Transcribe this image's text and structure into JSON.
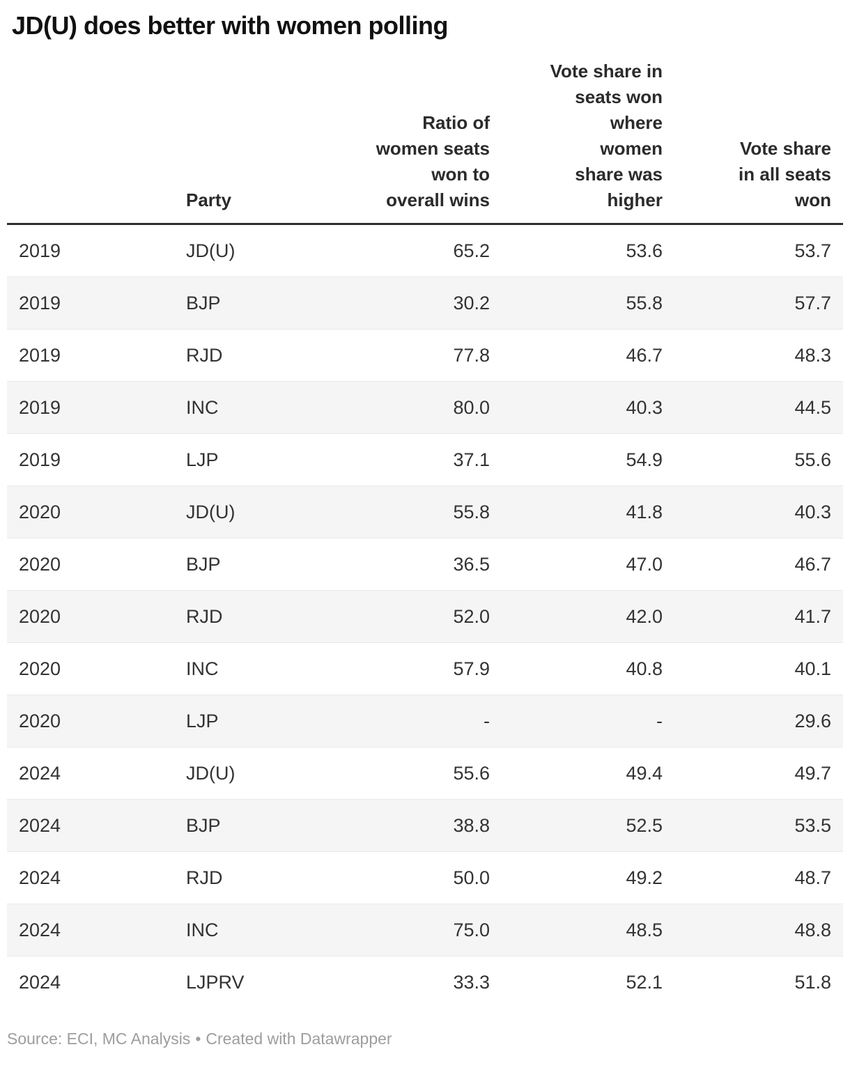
{
  "title": "JD(U) does better with women polling",
  "table": {
    "columns": [
      {
        "label": "",
        "align": "left"
      },
      {
        "label": "Party",
        "align": "left"
      },
      {
        "label": "Ratio of\nwomen seats\nwon to\noverall wins",
        "align": "right"
      },
      {
        "label": "Vote share in\nseats won\nwhere\nwomen\nshare was\nhigher",
        "align": "right"
      },
      {
        "label": "Vote share\nin all seats\nwon",
        "align": "right"
      }
    ],
    "rows": [
      [
        "2019",
        "JD(U)",
        "65.2",
        "53.6",
        "53.7"
      ],
      [
        "2019",
        "BJP",
        "30.2",
        "55.8",
        "57.7"
      ],
      [
        "2019",
        "RJD",
        "77.8",
        "46.7",
        "48.3"
      ],
      [
        "2019",
        "INC",
        "80.0",
        "40.3",
        "44.5"
      ],
      [
        "2019",
        "LJP",
        "37.1",
        "54.9",
        "55.6"
      ],
      [
        "2020",
        "JD(U)",
        "55.8",
        "41.8",
        "40.3"
      ],
      [
        "2020",
        "BJP",
        "36.5",
        "47.0",
        "46.7"
      ],
      [
        "2020",
        "RJD",
        "52.0",
        "42.0",
        "41.7"
      ],
      [
        "2020",
        "INC",
        "57.9",
        "40.8",
        "40.1"
      ],
      [
        "2020",
        "LJP",
        "-",
        "-",
        "29.6"
      ],
      [
        "2024",
        "JD(U)",
        "55.6",
        "49.4",
        "49.7"
      ],
      [
        "2024",
        "BJP",
        "38.8",
        "52.5",
        "53.5"
      ],
      [
        "2024",
        "RJD",
        "50.0",
        "49.2",
        "48.7"
      ],
      [
        "2024",
        "INC",
        "75.0",
        "48.5",
        "48.8"
      ],
      [
        "2024",
        "LJPRV",
        "33.3",
        "52.1",
        "51.8"
      ]
    ]
  },
  "footer": {
    "source_text": "Source: ECI, MC Analysis",
    "separator": "•",
    "attribution": "Created with Datawrapper"
  },
  "colors": {
    "text": "#333333",
    "title_text": "#111111",
    "header_rule": "#2e2e2e",
    "row_divider": "#e9e9e9",
    "stripe": "#f5f5f5",
    "footer_text": "#9d9d9d",
    "background": "#ffffff"
  }
}
